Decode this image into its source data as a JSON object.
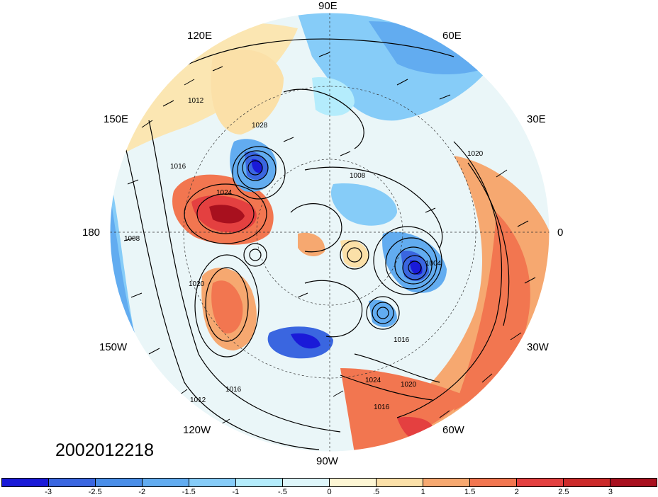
{
  "timestamp": "2002012218",
  "longitude_labels": {
    "n90e": "90E",
    "n120e": "120E",
    "n60e": "60E",
    "n150e": "150E",
    "n30e": "30E",
    "n180": "180",
    "n0": "0",
    "n150w": "150W",
    "n30w": "30W",
    "n120w": "120W",
    "n60w": "60W",
    "n90w": "90W"
  },
  "contour_labels": [
    "1012",
    "1016",
    "1020",
    "1024",
    "1028",
    "1008",
    "1004"
  ],
  "colorbar": {
    "ticks": [
      "-3",
      "-2.5",
      "-2",
      "-1.5",
      "-1",
      "-.5",
      "0",
      ".5",
      "1",
      "1.5",
      "2",
      "2.5",
      "3"
    ],
    "colors": [
      "#1a1ad8",
      "#3a66e0",
      "#4a8ee8",
      "#62acf0",
      "#86ccf8",
      "#b4ecfc",
      "#def6fa",
      "#fdf6d4",
      "#fbe0a8",
      "#f6a870",
      "#f27650",
      "#e44040",
      "#cc2a2a",
      "#a8101e"
    ]
  }
}
